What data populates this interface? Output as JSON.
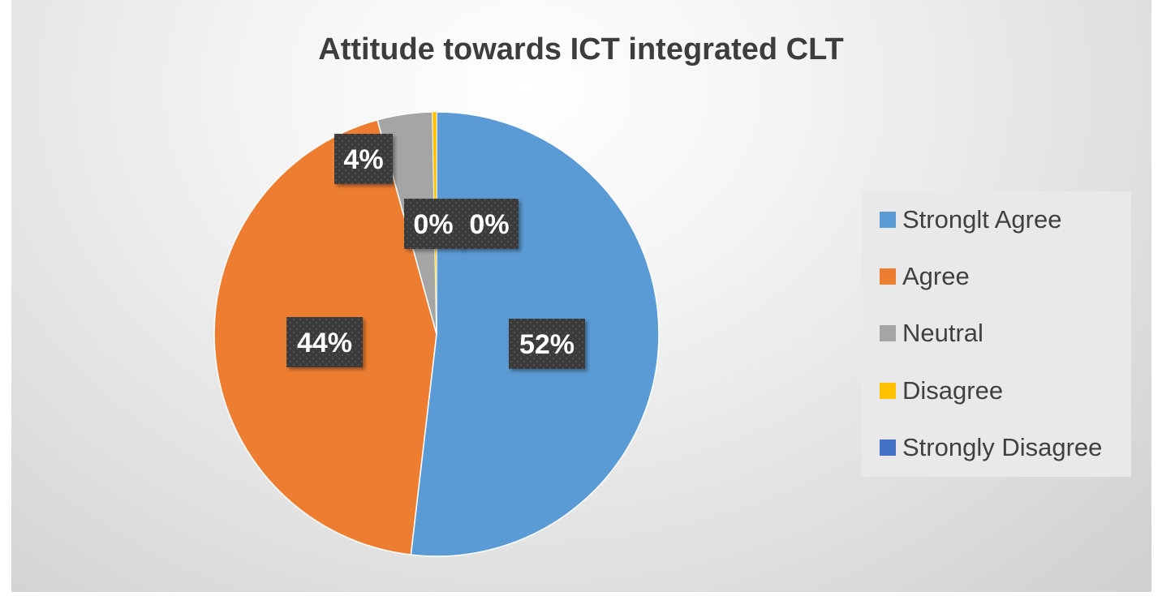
{
  "chart_data": {
    "type": "pie",
    "title": "Attitude towards ICT integrated CLT",
    "slices": [
      {
        "name": "Stronglt Agree",
        "value": 52,
        "label": "52%",
        "color": "#5B9BD5"
      },
      {
        "name": "Agree",
        "value": 44,
        "label": "44%",
        "color": "#ED7D31"
      },
      {
        "name": "Neutral",
        "value": 4,
        "label": "4%",
        "color": "#A5A5A5"
      },
      {
        "name": "Disagree",
        "value": 0.3,
        "label": "0%",
        "color": "#FFC000"
      },
      {
        "name": "Strongly Disagree",
        "value": 0,
        "label": "0%",
        "color": "#4472C4"
      }
    ],
    "legend_position": "right"
  }
}
